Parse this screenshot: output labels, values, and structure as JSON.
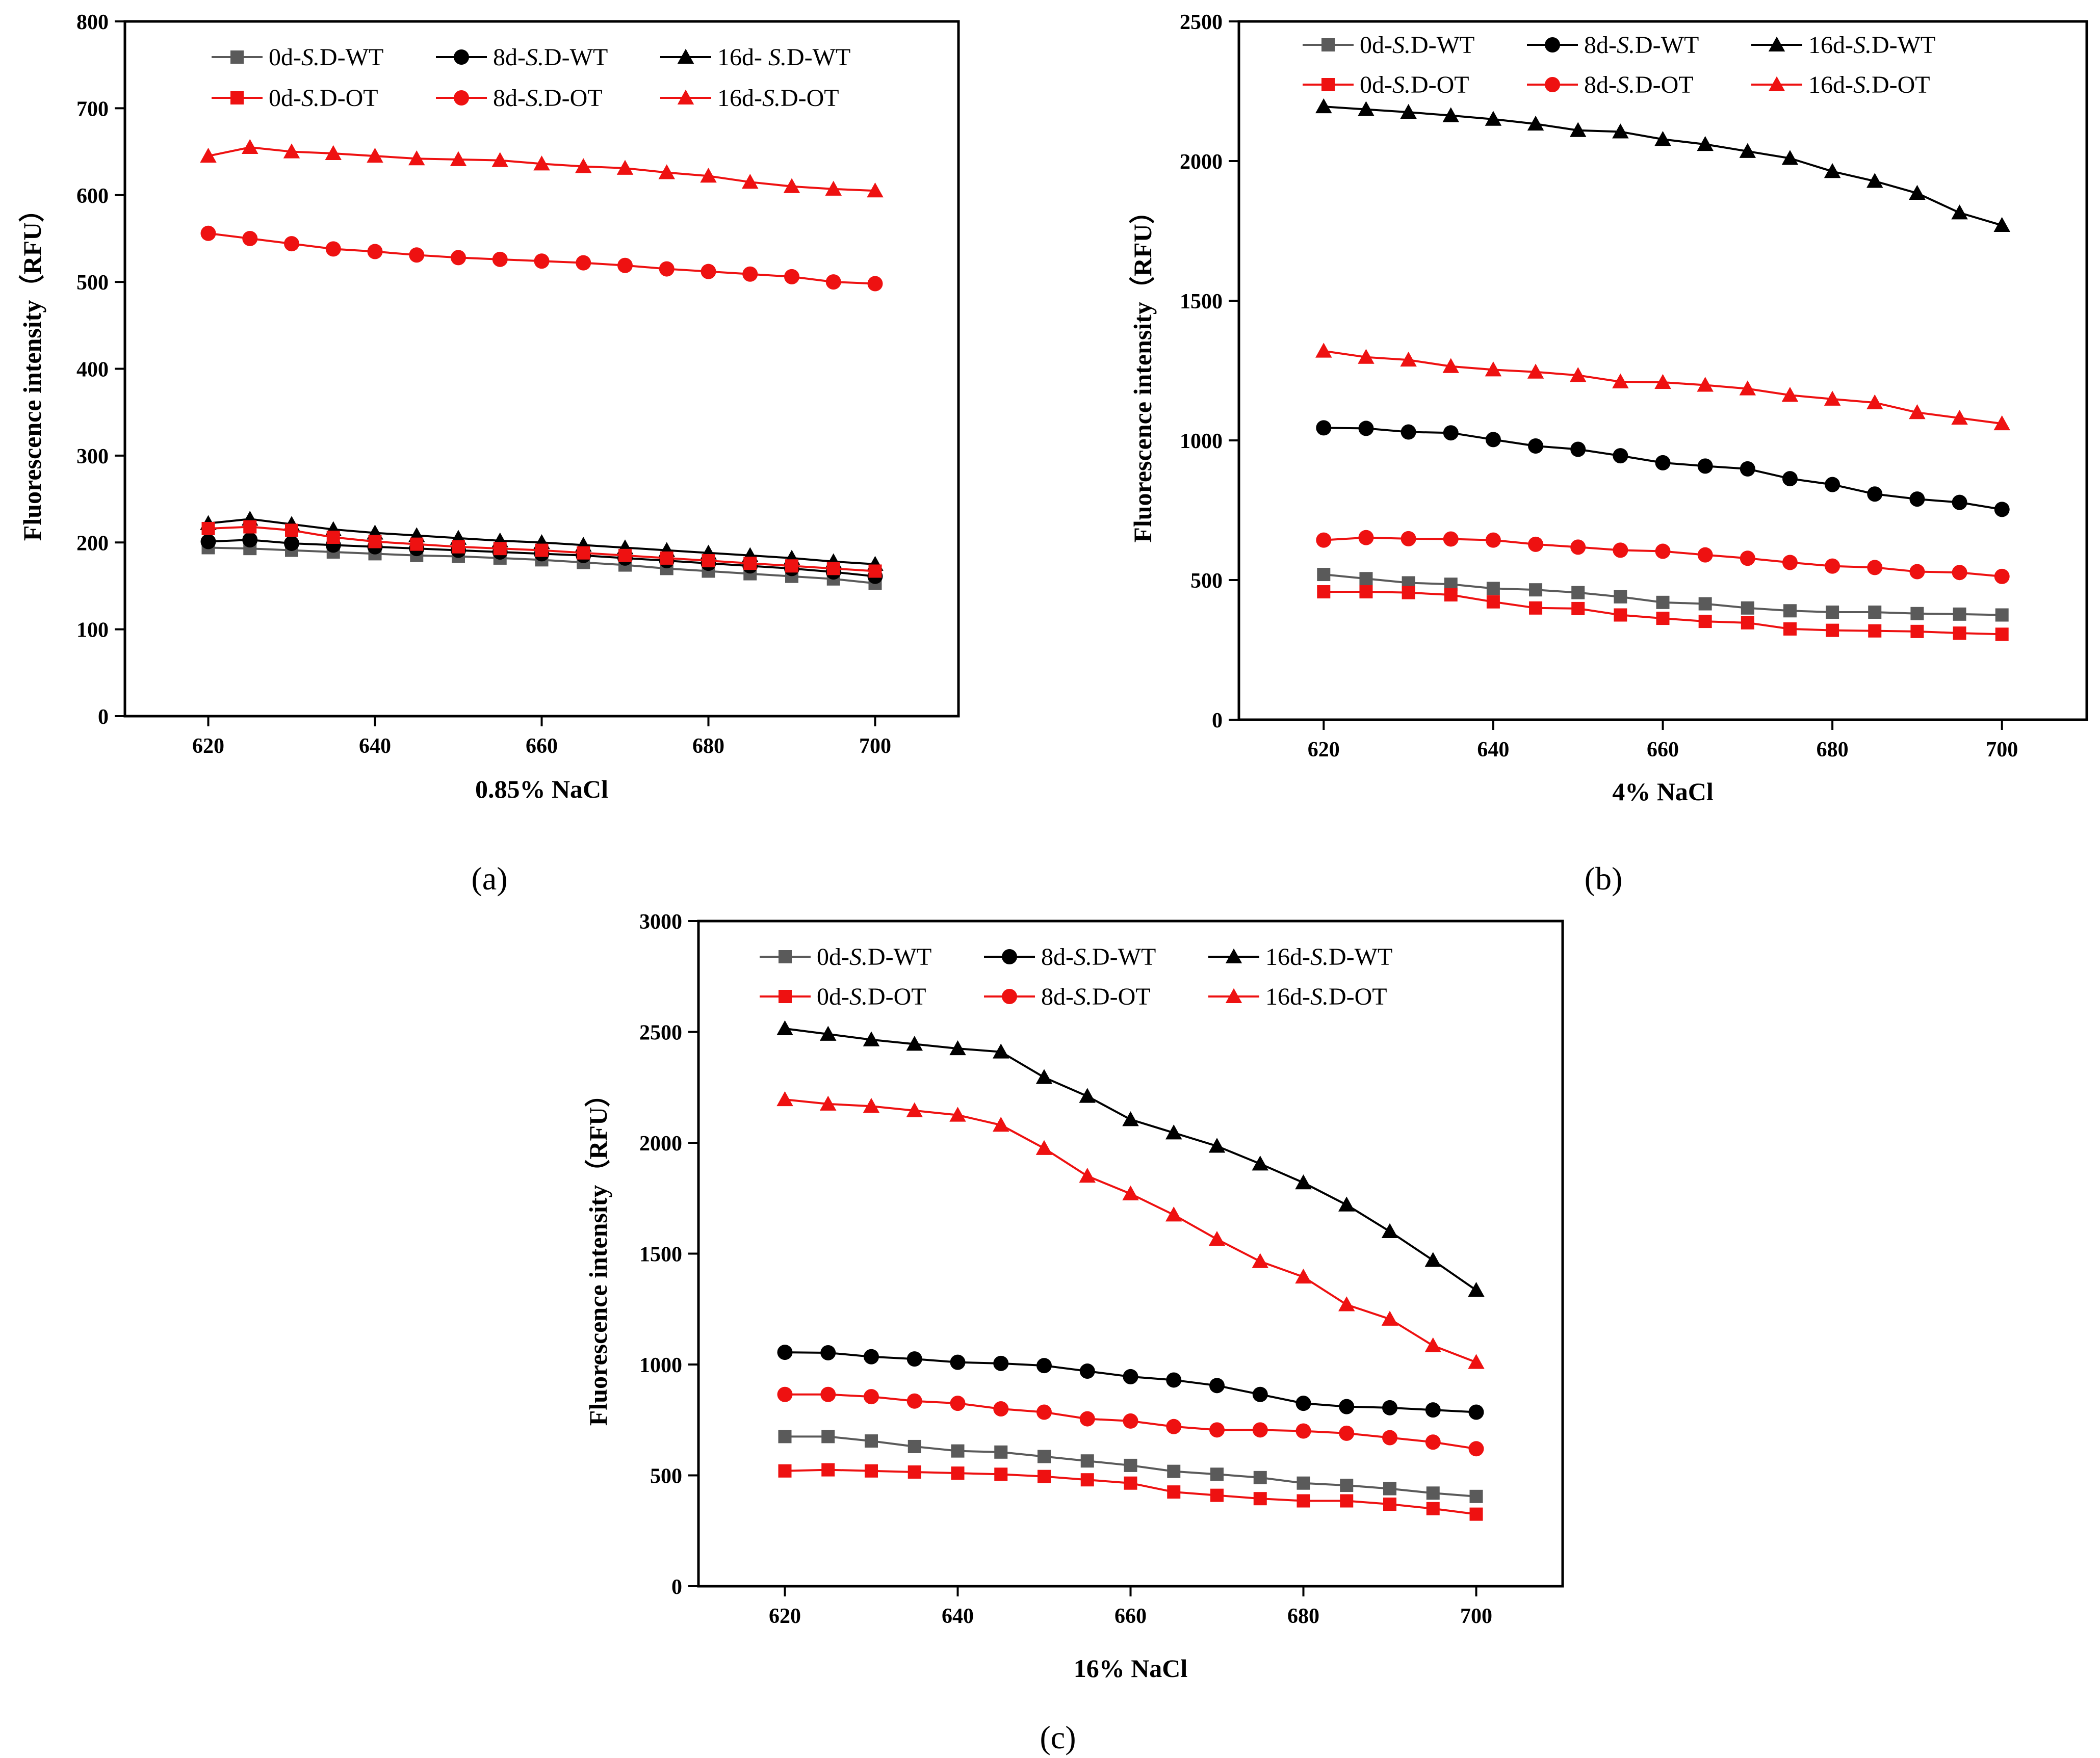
{
  "colors": {
    "gray": "#5a5a5a",
    "black": "#000000",
    "red": "#ee1111"
  },
  "chart_data": [
    {
      "type": "line",
      "panel_label": "(a)",
      "xlabel": "0.85% NaCl",
      "ylabel": "Fluorescence intensity（RFU）",
      "xlim": [
        610,
        710
      ],
      "ylim": [
        0,
        800
      ],
      "xticks": [
        620,
        640,
        660,
        680,
        700
      ],
      "yticks": [
        0,
        100,
        200,
        300,
        400,
        500,
        600,
        700,
        800
      ],
      "grid": false,
      "legend_position": "top",
      "x": [
        620,
        625,
        630,
        635,
        640,
        645,
        650,
        655,
        660,
        665,
        670,
        675,
        680,
        685,
        690,
        695,
        700
      ],
      "series": [
        {
          "name": "0d-S.D-WT",
          "legend_prefix": "0d-",
          "legend_italic": "S.",
          "legend_suffix": "D-WT",
          "color": "gray",
          "marker": "square",
          "values": [
            194,
            193,
            191,
            189,
            187,
            185,
            184,
            182,
            180,
            177,
            174,
            170,
            167,
            164,
            161,
            158,
            153
          ]
        },
        {
          "name": "8d-S.D-WT",
          "legend_prefix": "8d-",
          "legend_italic": "S.",
          "legend_suffix": "D-WT",
          "color": "black",
          "marker": "circle",
          "values": [
            201,
            203,
            199,
            197,
            195,
            193,
            191,
            189,
            187,
            185,
            182,
            179,
            176,
            173,
            170,
            166,
            161
          ]
        },
        {
          "name": "16d- S.D-WT",
          "legend_prefix": "16d- ",
          "legend_italic": "S.",
          "legend_suffix": "D-WT",
          "color": "black",
          "marker": "triangle",
          "values": [
            222,
            227,
            221,
            215,
            211,
            208,
            205,
            202,
            200,
            197,
            194,
            191,
            188,
            185,
            182,
            178,
            175
          ]
        },
        {
          "name": "0d-S.D-OT",
          "legend_prefix": "0d-",
          "legend_italic": "S.",
          "legend_suffix": "D-OT",
          "color": "red",
          "marker": "square",
          "values": [
            216,
            218,
            214,
            206,
            201,
            198,
            195,
            193,
            191,
            188,
            185,
            182,
            179,
            176,
            173,
            170,
            167
          ]
        },
        {
          "name": "8d-S.D-OT",
          "legend_prefix": "8d-",
          "legend_italic": "S.",
          "legend_suffix": "D-OT",
          "color": "red",
          "marker": "circle",
          "values": [
            556,
            550,
            544,
            538,
            535,
            531,
            528,
            526,
            524,
            522,
            519,
            515,
            512,
            509,
            506,
            500,
            498
          ]
        },
        {
          "name": "16d-S.D-OT",
          "legend_prefix": "16d-",
          "legend_italic": "S.",
          "legend_suffix": "D-OT",
          "color": "red",
          "marker": "triangle",
          "values": [
            645,
            655,
            650,
            648,
            645,
            642,
            641,
            640,
            636,
            633,
            631,
            626,
            622,
            615,
            610,
            607,
            605
          ]
        }
      ]
    },
    {
      "type": "line",
      "panel_label": "(b)",
      "xlabel": "4% NaCl",
      "ylabel": "Fluorescence intensity（RFU）",
      "xlim": [
        610,
        710
      ],
      "ylim": [
        0,
        2500
      ],
      "xticks": [
        620,
        640,
        660,
        680,
        700
      ],
      "yticks": [
        0,
        500,
        1000,
        1500,
        2000,
        2500
      ],
      "grid": false,
      "legend_position": "top",
      "x": [
        620,
        625,
        630,
        635,
        640,
        645,
        650,
        655,
        660,
        665,
        670,
        675,
        680,
        685,
        690,
        695,
        700
      ],
      "series": [
        {
          "name": "0d-S.D-WT",
          "legend_prefix": "0d-",
          "legend_italic": "S.",
          "legend_suffix": "D-WT",
          "color": "gray",
          "marker": "square",
          "values": [
            520,
            505,
            490,
            485,
            470,
            465,
            455,
            440,
            420,
            415,
            400,
            390,
            385,
            385,
            380,
            378,
            375
          ]
        },
        {
          "name": "8d-S.D-WT",
          "legend_prefix": "8d-",
          "legend_italic": "S.",
          "legend_suffix": "D-WT",
          "color": "black",
          "marker": "circle",
          "values": [
            1045,
            1043,
            1030,
            1027,
            1003,
            980,
            968,
            945,
            920,
            908,
            898,
            863,
            842,
            808,
            790,
            778,
            753
          ]
        },
        {
          "name": "16d-S.D-WT",
          "legend_prefix": "16d-",
          "legend_italic": "S.",
          "legend_suffix": "D-WT",
          "color": "black",
          "marker": "triangle",
          "values": [
            2195,
            2185,
            2175,
            2163,
            2150,
            2133,
            2110,
            2105,
            2078,
            2060,
            2035,
            2010,
            1963,
            1928,
            1885,
            1815,
            1770
          ]
        },
        {
          "name": "0d-S.D-OT",
          "legend_prefix": "0d-",
          "legend_italic": "S.",
          "legend_suffix": "D-OT",
          "color": "red",
          "marker": "square",
          "values": [
            458,
            458,
            455,
            447,
            422,
            400,
            398,
            375,
            363,
            352,
            347,
            325,
            320,
            318,
            316,
            310,
            306
          ]
        },
        {
          "name": "8d-S.D-OT",
          "legend_prefix": "8d-",
          "legend_italic": "S.",
          "legend_suffix": "D-OT",
          "color": "red",
          "marker": "circle",
          "values": [
            643,
            652,
            648,
            647,
            643,
            628,
            618,
            607,
            603,
            590,
            578,
            563,
            550,
            545,
            530,
            527,
            513
          ]
        },
        {
          "name": "16d-S.D-OT",
          "legend_prefix": "16d-",
          "legend_italic": "S.",
          "legend_suffix": "D-OT",
          "color": "red",
          "marker": "triangle",
          "values": [
            1320,
            1298,
            1288,
            1265,
            1253,
            1245,
            1233,
            1210,
            1208,
            1198,
            1185,
            1162,
            1148,
            1135,
            1100,
            1080,
            1060
          ]
        }
      ]
    },
    {
      "type": "line",
      "panel_label": "(c)",
      "xlabel": "16% NaCl",
      "ylabel": "Fluorescence intensity（RFU）",
      "xlim": [
        610,
        710
      ],
      "ylim": [
        0,
        3000
      ],
      "xticks": [
        620,
        640,
        660,
        680,
        700
      ],
      "yticks": [
        0,
        500,
        1000,
        1500,
        2000,
        2500,
        3000
      ],
      "grid": false,
      "legend_position": "top",
      "x": [
        620,
        625,
        630,
        635,
        640,
        645,
        650,
        655,
        660,
        665,
        670,
        675,
        680,
        685,
        690,
        695,
        700
      ],
      "series": [
        {
          "name": "0d-S.D-WT",
          "legend_prefix": "0d-",
          "legend_italic": "S.",
          "legend_suffix": "D-WT",
          "color": "gray",
          "marker": "square",
          "values": [
            675,
            675,
            655,
            630,
            610,
            605,
            585,
            565,
            545,
            518,
            505,
            490,
            465,
            455,
            440,
            420,
            405
          ]
        },
        {
          "name": "8d-S.D-WT",
          "legend_prefix": "8d-",
          "legend_italic": "S.",
          "legend_suffix": "D-WT",
          "color": "black",
          "marker": "circle",
          "values": [
            1055,
            1053,
            1035,
            1025,
            1010,
            1005,
            995,
            970,
            945,
            930,
            905,
            865,
            825,
            810,
            805,
            795,
            785
          ]
        },
        {
          "name": "16d-S.D-WT",
          "legend_prefix": "16d-",
          "legend_italic": "S.",
          "legend_suffix": "D-WT",
          "color": "black",
          "marker": "triangle",
          "values": [
            2515,
            2490,
            2465,
            2445,
            2425,
            2410,
            2295,
            2210,
            2105,
            2045,
            1985,
            1905,
            1820,
            1720,
            1600,
            1470,
            1335
          ]
        },
        {
          "name": "0d-S.D-OT",
          "legend_prefix": "0d-",
          "legend_italic": "S.",
          "legend_suffix": "D-OT",
          "color": "red",
          "marker": "square",
          "values": [
            520,
            525,
            520,
            515,
            510,
            505,
            495,
            480,
            465,
            425,
            410,
            395,
            385,
            385,
            370,
            350,
            325
          ]
        },
        {
          "name": "8d-S.D-OT",
          "legend_prefix": "8d-",
          "legend_italic": "S.",
          "legend_suffix": "D-OT",
          "color": "red",
          "marker": "circle",
          "values": [
            865,
            865,
            855,
            835,
            825,
            800,
            785,
            755,
            745,
            720,
            705,
            705,
            700,
            690,
            670,
            650,
            620
          ]
        },
        {
          "name": "16d-S.D-OT",
          "legend_prefix": "16d-",
          "legend_italic": "S.",
          "legend_suffix": "D-OT",
          "color": "red",
          "marker": "triangle",
          "values": [
            2195,
            2175,
            2165,
            2145,
            2125,
            2080,
            1975,
            1850,
            1770,
            1675,
            1565,
            1465,
            1395,
            1270,
            1205,
            1085,
            1010
          ]
        }
      ]
    }
  ]
}
